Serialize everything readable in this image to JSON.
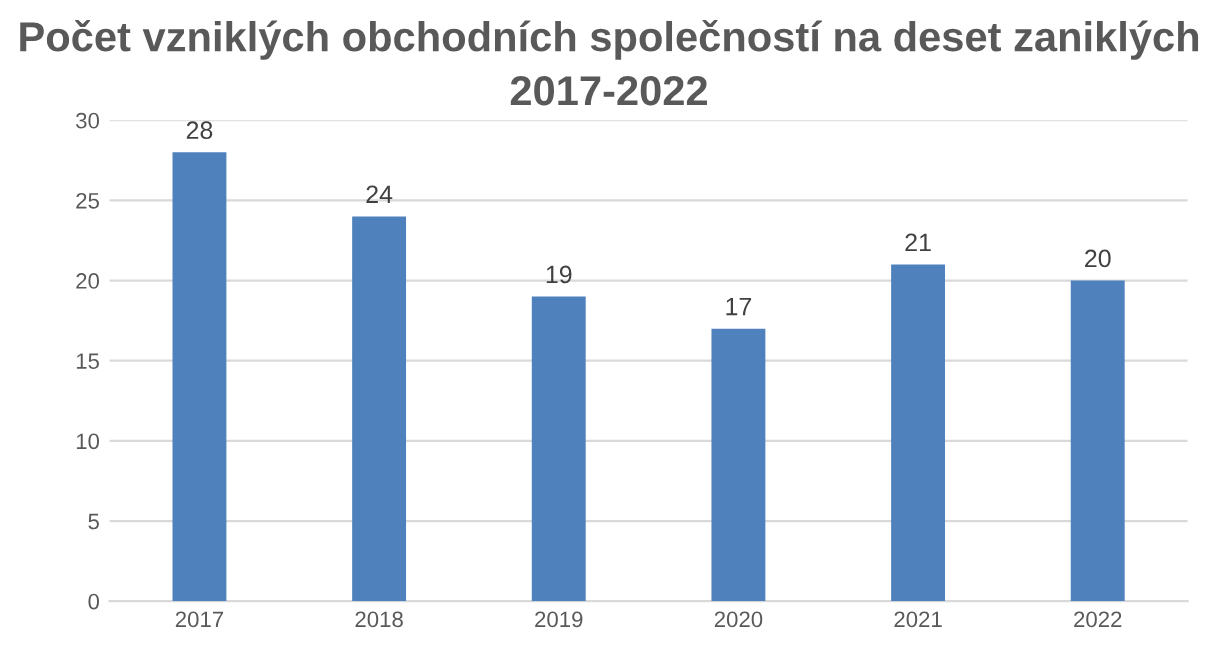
{
  "chart_data": {
    "type": "bar",
    "title": "Počet vzniklých obchodních společností na deset zaniklých 2017-2022",
    "categories": [
      "2017",
      "2018",
      "2019",
      "2020",
      "2021",
      "2022"
    ],
    "values": [
      28,
      24,
      19,
      17,
      21,
      20
    ],
    "color": "#4f81bd",
    "ylim": [
      0,
      30
    ],
    "yticks": [
      0,
      5,
      10,
      15,
      20,
      25,
      30
    ],
    "grid": "y",
    "data_labels": true
  }
}
